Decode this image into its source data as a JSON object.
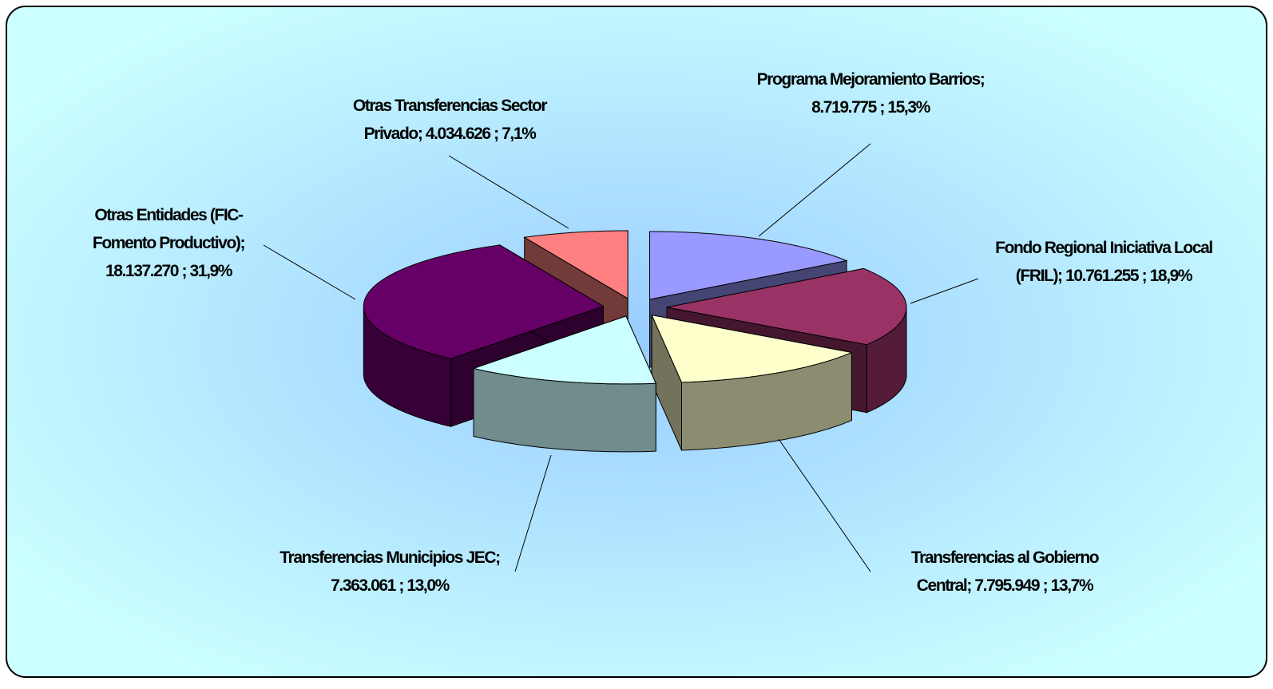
{
  "chart_data": {
    "type": "pie",
    "style": "3d-exploded",
    "categories": [
      "Programa Mejoramiento Barrios",
      "Fondo Regional Iniciativa Local (FRIL)",
      "Transferencias al Gobierno Central",
      "Transferencias Municipios JEC",
      "Otras Entidades (FIC-Fomento Productivo)",
      "Otras Transferencias Sector Privado"
    ],
    "values": [
      8719775,
      10761255,
      7795949,
      7363061,
      18137270,
      4034626
    ],
    "value_labels": [
      "8.719.775",
      "10.761.255",
      "7.795.949",
      "7.363.061",
      "18.137.270",
      "4.034.626"
    ],
    "percentages": [
      15.3,
      18.9,
      13.7,
      13.0,
      31.9,
      7.1
    ],
    "percentage_labels": [
      "15,3%",
      "18,9%",
      "13,7%",
      "13,0%",
      "31,9%",
      "7,1%"
    ],
    "separator": ";",
    "colors": [
      "#9999ff",
      "#993366",
      "#ffffcc",
      "#ccffff",
      "#660066",
      "#ff8080"
    ]
  }
}
